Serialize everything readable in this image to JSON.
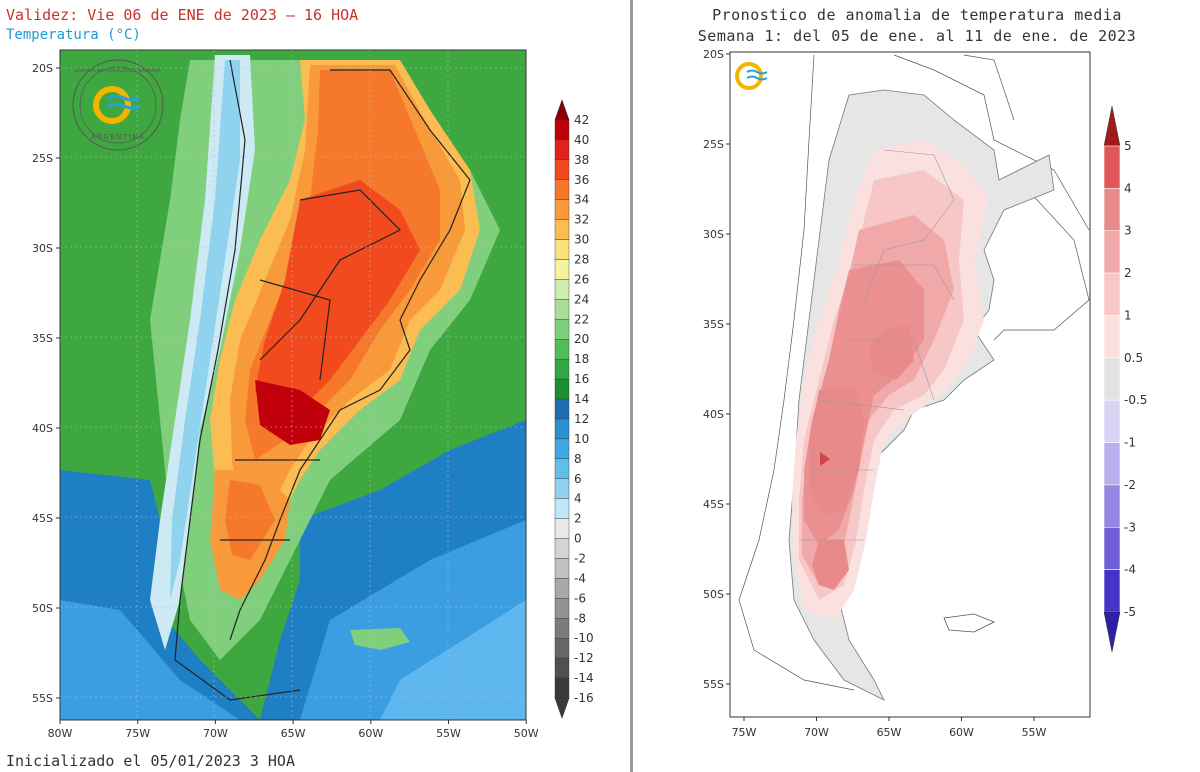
{
  "left_panel": {
    "validity": "Validez: Vie 06 de ENE de 2023 — 16 HOA",
    "variable": "Temperatura (°C)",
    "initialized": "Inicializado el 05/01/2023 3 HOA",
    "logo_text": "ARGENTINA",
    "logo_ring_text": "SERVICIO METEOROLOGICO NACIONAL",
    "lat_labels": [
      "20S",
      "25S",
      "30S",
      "35S",
      "40S",
      "45S",
      "50S",
      "55S"
    ],
    "lon_labels": [
      "80W",
      "75W",
      "70W",
      "65W",
      "60W",
      "55W",
      "50W"
    ],
    "colorbar": {
      "labels": [
        "42",
        "40",
        "38",
        "36",
        "34",
        "32",
        "30",
        "28",
        "26",
        "24",
        "22",
        "20",
        "18",
        "16",
        "14",
        "12",
        "10",
        "8",
        "6",
        "4",
        "2",
        "0",
        "-2",
        "-4",
        "-6",
        "-8",
        "-10",
        "-12",
        "-14",
        "-16"
      ],
      "colors": [
        "#8b0000",
        "#c1000c",
        "#e0241a",
        "#f04a1e",
        "#f6782a",
        "#f99a3a",
        "#fbbd52",
        "#fce07a",
        "#f4f3a0",
        "#cdecb0",
        "#a7de9b",
        "#7fcf7c",
        "#52bd57",
        "#31a843",
        "#1a8f33",
        "#1f6fb0",
        "#2b8fd0",
        "#3fa7e2",
        "#62bde8",
        "#8fd3ef",
        "#bfe8f7",
        "#e8e8e8",
        "#d4d4d4",
        "#c0c0c0",
        "#a8a8a8",
        "#929292",
        "#7c7c7c",
        "#666666",
        "#505050",
        "#3a3a3a"
      ]
    }
  },
  "right_panel": {
    "title_line1": "Pronostico de anomalia de temperatura media",
    "title_line2": "Semana 1: del 05 de ene. al 11 de ene. de 2023",
    "lat_labels": [
      "20S",
      "25S",
      "30S",
      "35S",
      "40S",
      "45S",
      "50S",
      "55S"
    ],
    "lon_labels": [
      "75W",
      "70W",
      "65W",
      "60W",
      "55W"
    ],
    "colorbar": {
      "labels": [
        "5",
        "4",
        "3",
        "2",
        "1",
        "0.5",
        "-0.5",
        "-1",
        "-2",
        "-3",
        "-4",
        "-5"
      ],
      "colors": [
        "#a31a1a",
        "#e05858",
        "#e98a8a",
        "#f0a8a8",
        "#f7c6c6",
        "#fbe0e0",
        "#e2e2e2",
        "#d8d4f6",
        "#b9b0ee",
        "#9486e3",
        "#6f5ed8",
        "#4632c4",
        "#2f1fa8"
      ]
    }
  }
}
